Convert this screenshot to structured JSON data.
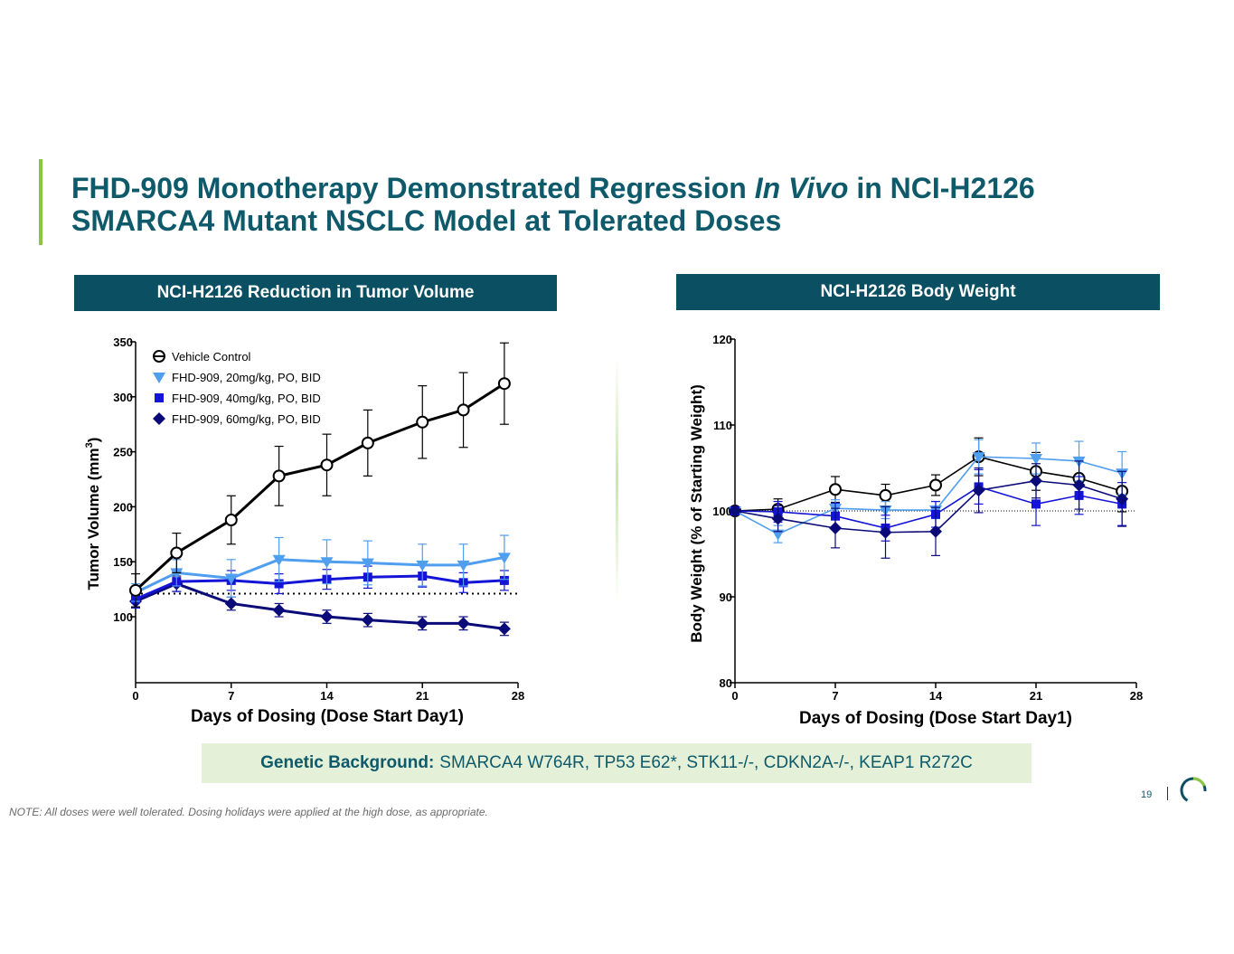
{
  "slide": {
    "title_part1": "FHD-909 Monotherapy Demonstrated Regression ",
    "title_italic": "In Vivo",
    "title_part2": " in NCI-H2126",
    "title_line2": "SMARCA4 Mutant NSCLC Model at Tolerated Doses",
    "genetic_label": "Genetic Background:",
    "genetic_value": "SMARCA4 W764R, TP53 E62*, STK11-/-, CDKN2A-/-, KEAP1 R272C",
    "note": "NOTE: All doses were well tolerated. Dosing holidays were applied at the high dose, as appropriate.",
    "page_number": "19",
    "colors": {
      "title": "#0e5a6b",
      "header_bg": "#0b4f63",
      "accent": "#8cc63f",
      "genetic_bg": "#e4f0d8"
    }
  },
  "chart_data": [
    {
      "type": "line",
      "header": "NCI-H2126 Reduction in Tumor Volume",
      "xlabel": "Days of Dosing (Dose Start Day1)",
      "ylabel_main": "Tumor Volume (mm",
      "ylabel_sup": "3",
      "ylabel_close": ")",
      "xlim": [
        0,
        28
      ],
      "ylim": [
        40,
        350
      ],
      "xticks": [
        "0",
        "7",
        "14",
        "21",
        "28"
      ],
      "yticks": [
        "100",
        "150",
        "200",
        "250",
        "300",
        "350"
      ],
      "reference_line": 121,
      "legend_position": "top-left",
      "series": [
        {
          "name": "Vehicle Control",
          "color": "#000000",
          "marker": "circle-open",
          "x": [
            0,
            3,
            7,
            10.5,
            14,
            17,
            21,
            24,
            27
          ],
          "y": [
            124,
            158,
            188,
            228,
            238,
            258,
            277,
            288,
            312
          ],
          "err": [
            15,
            18,
            22,
            27,
            28,
            30,
            33,
            34,
            37
          ]
        },
        {
          "name": "FHD-909, 20mg/kg, PO, BID",
          "color": "#4f9ef0",
          "marker": "triangle-down",
          "x": [
            0,
            3,
            7,
            10.5,
            14,
            17,
            21,
            24,
            27
          ],
          "y": [
            122,
            140,
            135,
            152,
            150,
            149,
            147,
            147,
            154
          ],
          "err": [
            8,
            12,
            17,
            20,
            20,
            20,
            19,
            19,
            20
          ]
        },
        {
          "name": "FHD-909, 40mg/kg, PO, BID",
          "color": "#1414d6",
          "marker": "square",
          "x": [
            0,
            3,
            7,
            10.5,
            14,
            17,
            21,
            24,
            27
          ],
          "y": [
            116,
            132,
            133,
            130,
            134,
            136,
            137,
            131,
            133
          ],
          "err": [
            8,
            9,
            9,
            9,
            9,
            10,
            10,
            9,
            9
          ]
        },
        {
          "name": "FHD-909, 60mg/kg, PO, BID",
          "color": "#0a0a78",
          "marker": "diamond",
          "x": [
            0,
            3,
            7,
            10.5,
            14,
            17,
            21,
            24,
            27
          ],
          "y": [
            114,
            130,
            112,
            106,
            100,
            97,
            94,
            94,
            89
          ],
          "err": [
            6,
            7,
            6,
            6,
            6,
            6,
            6,
            6,
            6
          ]
        }
      ]
    },
    {
      "type": "line",
      "header": "NCI-H2126 Body Weight",
      "xlabel": "Days of Dosing (Dose Start Day1)",
      "ylabel": "Body Weight (% of Starting Weight)",
      "xlim": [
        0,
        28
      ],
      "ylim": [
        80,
        120
      ],
      "xticks": [
        "0",
        "7",
        "14",
        "21",
        "28"
      ],
      "yticks": [
        "80",
        "90",
        "100",
        "110",
        "120"
      ],
      "reference_line": 100,
      "series": [
        {
          "name": "Vehicle Control",
          "color": "#000000",
          "marker": "circle-open",
          "x": [
            0,
            3,
            7,
            10.5,
            14,
            17,
            21,
            24,
            27
          ],
          "y": [
            100,
            100.2,
            102.5,
            101.8,
            103,
            106.3,
            104.6,
            103.8,
            102.3
          ],
          "err": [
            0,
            1.2,
            1.5,
            1.3,
            1.2,
            2.2,
            2.2,
            2.3,
            2.4
          ]
        },
        {
          "name": "FHD-909, 20mg/kg, PO, BID",
          "color": "#4f9ef0",
          "marker": "triangle-down",
          "x": [
            0,
            3,
            7,
            10.5,
            14,
            17,
            21,
            24,
            27
          ],
          "y": [
            100,
            97.3,
            100.3,
            100.1,
            100.1,
            106.3,
            106.1,
            105.8,
            104.4
          ],
          "err": [
            0,
            1,
            1,
            1,
            1,
            2,
            1.8,
            2.3,
            2.5
          ]
        },
        {
          "name": "FHD-909, 40mg/kg, PO, BID",
          "color": "#1414d6",
          "marker": "square",
          "x": [
            0,
            3,
            7,
            10.5,
            14,
            17,
            21,
            24,
            27
          ],
          "y": [
            100,
            99.9,
            99.4,
            98,
            99.6,
            102.8,
            100.8,
            101.8,
            100.8
          ],
          "err": [
            0,
            1.2,
            1.5,
            1.5,
            1.5,
            2,
            2.5,
            2.2,
            2.5
          ]
        },
        {
          "name": "FHD-909, 60mg/kg, PO, BID",
          "color": "#0a0a78",
          "marker": "diamond",
          "x": [
            0,
            3,
            7,
            10.5,
            14,
            17,
            21,
            24,
            27
          ],
          "y": [
            100,
            99.1,
            98,
            97.5,
            97.6,
            102.4,
            103.5,
            103,
            101.4
          ],
          "err": [
            0,
            1.5,
            2.3,
            3,
            2.8,
            2.6,
            2,
            2.8,
            3.2
          ]
        }
      ]
    }
  ]
}
